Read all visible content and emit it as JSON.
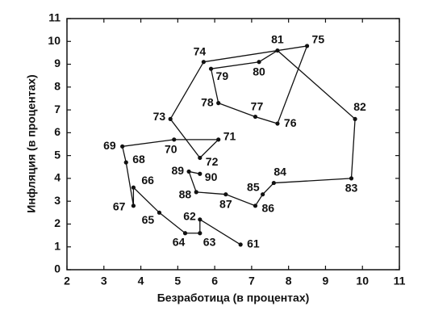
{
  "chart_data": {
    "type": "connected-scatter",
    "xlabel": "Безработица (в процентах)",
    "ylabel": "Инфляция (в процентах)",
    "labels": [
      "61",
      "62",
      "63",
      "64",
      "65",
      "66",
      "67",
      "68",
      "69",
      "70",
      "71",
      "72",
      "73",
      "74",
      "75",
      "76",
      "77",
      "78",
      "79",
      "80",
      "81",
      "82",
      "83",
      "84",
      "85",
      "86",
      "87",
      "88",
      "89",
      "90"
    ],
    "x": [
      6.7,
      5.6,
      5.6,
      5.2,
      4.5,
      3.8,
      3.8,
      3.6,
      3.5,
      4.9,
      6.1,
      5.6,
      4.8,
      5.7,
      8.5,
      7.7,
      7.1,
      6.1,
      5.9,
      7.2,
      7.7,
      9.8,
      9.7,
      7.6,
      7.3,
      7.1,
      6.3,
      5.5,
      5.3,
      5.6
    ],
    "y": [
      1.1,
      2.2,
      1.6,
      1.6,
      2.5,
      3.6,
      2.8,
      4.7,
      5.4,
      5.7,
      5.7,
      4.9,
      6.6,
      9.1,
      9.8,
      6.4,
      6.7,
      7.3,
      8.8,
      9.1,
      9.6,
      6.6,
      4.0,
      3.8,
      3.3,
      2.8,
      3.3,
      3.4,
      4.3,
      4.2
    ],
    "color": "#111111",
    "xlim": [
      2,
      11
    ],
    "xticks": [
      2,
      3,
      4,
      5,
      6,
      7,
      8,
      9,
      10,
      11
    ],
    "ylim": [
      0,
      11
    ],
    "yticks": [
      0,
      1,
      2,
      3,
      4,
      5,
      6,
      7,
      8,
      9,
      10,
      11
    ]
  }
}
